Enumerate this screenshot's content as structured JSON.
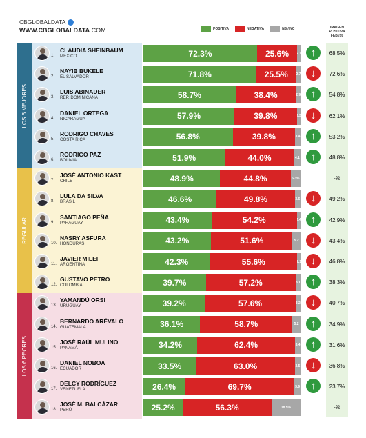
{
  "brand": {
    "name": "CBGLOBALDATA",
    "url_bold": "WWW.CBGLOBALDATA",
    "url_rest": ".COM"
  },
  "legend": [
    {
      "label": "POSITIVA",
      "color": "#5da245"
    },
    {
      "label": "NEGATIVA",
      "color": "#d72425"
    },
    {
      "label": "NS / NC",
      "color": "#a7a7a7"
    }
  ],
  "image_header": [
    "IMAGEN",
    "POSITIVA",
    "FEB./26"
  ],
  "groups": [
    {
      "label": "LOS 6 MEJORES",
      "color": "#2e6f8e",
      "bg": "#d8e8f3"
    },
    {
      "label": "REGULAR",
      "color": "#e8c14a",
      "bg": "#fbf3d4"
    },
    {
      "label": "LOS 6 PEORES",
      "color": "#c5314d",
      "bg": "#f6dde4"
    }
  ],
  "chart_data": {
    "type": "bar",
    "stacked": true,
    "orientation": "horizontal",
    "series_names": [
      "POSITIVA",
      "NEGATIVA",
      "NS / NC"
    ],
    "rows": [
      {
        "rank": "1.",
        "name": "CLAUDIA SHEINBAUM",
        "country": "MÉXICO",
        "group": 0,
        "pos": 72.3,
        "neg": 25.6,
        "ns": 2.1,
        "pos_label": "72.3%",
        "neg_label": "25.6%",
        "ns_label": "2.1",
        "trend": "up",
        "image": "68.5%"
      },
      {
        "rank": "2.",
        "name": "NAYIB BUKELE",
        "country": "EL SALVADOR",
        "group": 0,
        "pos": 71.8,
        "neg": 25.5,
        "ns": 2.7,
        "pos_label": "71.8%",
        "neg_label": "25.5%",
        "ns_label": "2.7",
        "trend": "down",
        "image": "72.6%"
      },
      {
        "rank": "3.",
        "name": "LUIS ABINADER",
        "country": "REP. DOMINICANA",
        "group": 0,
        "pos": 58.7,
        "neg": 38.4,
        "ns": 2.9,
        "pos_label": "58.7%",
        "neg_label": "38.4%",
        "ns_label": "2.9",
        "trend": "up",
        "image": "54.8%"
      },
      {
        "rank": "4.",
        "name": "DANIEL ORTEGA",
        "country": "NICARAGUA",
        "group": 0,
        "pos": 57.9,
        "neg": 39.8,
        "ns": 2.3,
        "pos_label": "57.9%",
        "neg_label": "39.8%",
        "ns_label": "2.3",
        "trend": "down",
        "image": "62.1%"
      },
      {
        "rank": "5.",
        "name": "RODRIGO CHAVES",
        "country": "COSTA RICA",
        "group": 0,
        "pos": 56.8,
        "neg": 39.8,
        "ns": 3.4,
        "pos_label": "56.8%",
        "neg_label": "39.8%",
        "ns_label": "3.4",
        "trend": "up",
        "image": "53.2%"
      },
      {
        "rank": "6.",
        "name": "RODRIGO PAZ",
        "country": "BOLIVIA",
        "group": 0,
        "pos": 51.9,
        "neg": 44.0,
        "ns": 4.1,
        "pos_label": "51.9%",
        "neg_label": "44.0%",
        "ns_label": "4.1",
        "trend": "up",
        "image": "48.8%"
      },
      {
        "rank": "7.",
        "name": "JOSÉ ANTONIO KAST",
        "country": "CHILE",
        "group": 1,
        "pos": 48.9,
        "neg": 44.8,
        "ns": 6.3,
        "pos_label": "48.9%",
        "neg_label": "44.8%",
        "ns_label": "6.3%",
        "trend": "none",
        "image": "-%"
      },
      {
        "rank": "8.",
        "name": "LULA DA SILVA",
        "country": "BRASIL",
        "group": 1,
        "pos": 46.6,
        "neg": 49.8,
        "ns": 3.6,
        "pos_label": "46.6%",
        "neg_label": "49.8%",
        "ns_label": "3.6",
        "trend": "down",
        "image": "49.2%"
      },
      {
        "rank": "9.",
        "name": "SANTIAGO PEÑA",
        "country": "PARAGUAY",
        "group": 1,
        "pos": 43.4,
        "neg": 54.2,
        "ns": 2.4,
        "pos_label": "43.4%",
        "neg_label": "54.2%",
        "ns_label": "2.4",
        "trend": "up",
        "image": "42.9%"
      },
      {
        "rank": "10.",
        "name": "NASRY ASFURA",
        "country": "HONDURAS",
        "group": 1,
        "pos": 43.2,
        "neg": 51.6,
        "ns": 5.2,
        "pos_label": "43.2%",
        "neg_label": "51.6%",
        "ns_label": "5.2",
        "trend": "down",
        "image": "43.4%"
      },
      {
        "rank": "11.",
        "name": "JAVIER MILEI",
        "country": "ARGENTINA",
        "group": 1,
        "pos": 42.3,
        "neg": 55.6,
        "ns": 2.1,
        "pos_label": "42.3%",
        "neg_label": "55.6%",
        "ns_label": "2.1",
        "trend": "down",
        "image": "46.8%"
      },
      {
        "rank": "12.",
        "name": "GUSTAVO PETRO",
        "country": "COLOMBIA",
        "group": 1,
        "pos": 39.7,
        "neg": 57.2,
        "ns": 3.1,
        "pos_label": "39.7%",
        "neg_label": "57.2%",
        "ns_label": "3.1",
        "trend": "up",
        "image": "38.3%"
      },
      {
        "rank": "13.",
        "name": "YAMANDÚ ORSI",
        "country": "URUGUAY",
        "group": 2,
        "pos": 39.2,
        "neg": 57.6,
        "ns": 3.2,
        "pos_label": "39.2%",
        "neg_label": "57.6%",
        "ns_label": "3.2",
        "trend": "down",
        "image": "40.7%"
      },
      {
        "rank": "14.",
        "name": "BERNARDO ARÉVALO",
        "country": "GUATEMALA",
        "group": 2,
        "pos": 36.1,
        "neg": 58.7,
        "ns": 5.2,
        "pos_label": "36.1%",
        "neg_label": "58.7%",
        "ns_label": "5.2",
        "trend": "up",
        "image": "34.9%"
      },
      {
        "rank": "15.",
        "name": "JOSÉ RAÚL MULINO",
        "country": "PANAMÁ",
        "group": 2,
        "pos": 34.2,
        "neg": 62.4,
        "ns": 3.4,
        "pos_label": "34.2%",
        "neg_label": "62.4%",
        "ns_label": "3.4",
        "trend": "up",
        "image": "31.6%"
      },
      {
        "rank": "16.",
        "name": "DANIEL NOBOA",
        "country": "ECUADOR",
        "group": 2,
        "pos": 33.5,
        "neg": 63.0,
        "ns": 3.5,
        "pos_label": "33.5%",
        "neg_label": "63.0%",
        "ns_label": "3.5",
        "trend": "down",
        "image": "36.8%"
      },
      {
        "rank": "17.",
        "name": "DELCY RODRÍGUEZ",
        "country": "VENEZUELA",
        "group": 2,
        "pos": 26.4,
        "neg": 69.7,
        "ns": 3.9,
        "pos_label": "26.4%",
        "neg_label": "69.7%",
        "ns_label": "3.9",
        "trend": "up",
        "image": "23.7%"
      },
      {
        "rank": "18.",
        "name": "JOSÉ M. BALCÁZAR",
        "country": "PERÚ",
        "group": 2,
        "pos": 25.2,
        "neg": 56.3,
        "ns": 18.5,
        "pos_label": "25.2%",
        "neg_label": "56.3%",
        "ns_label": "18.5%",
        "trend": "none",
        "image": "-%"
      }
    ],
    "xlim": [
      0,
      100
    ]
  }
}
